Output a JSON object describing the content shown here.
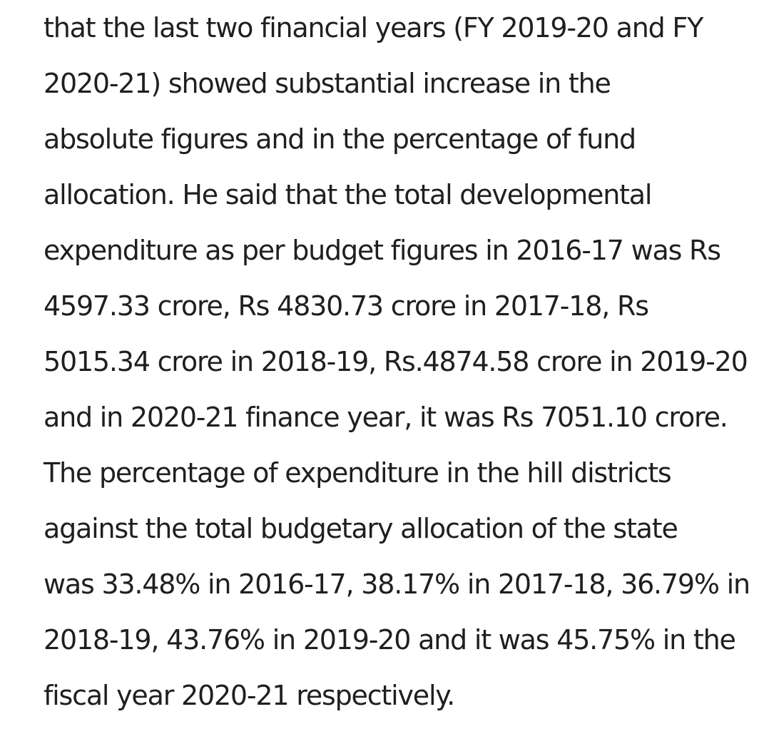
{
  "article": {
    "lines": [
      "that the last two financial years (FY 2019-20 and FY",
      "2020-21) showed substantial increase in the",
      "absolute figures and in the percentage of fund",
      "allocation. He said that the total developmental",
      "expenditure as per budget figures in 2016-17 was Rs",
      "4597.33 crore, Rs 4830.73 crore in 2017-18, Rs",
      "5015.34 crore in 2018-19, Rs.4874.58 crore in 2019-20",
      "and in 2020-21 finance year, it was Rs 7051.10 crore.",
      "The percentage of expenditure in the hill districts",
      "against the total budgetary allocation of the state",
      "was 33.48% in 2016-17, 38.17% in 2017-18, 36.79% in",
      "2018-19, 43.76% in 2019-20 and it was 45.75% in the",
      "fiscal year 2020-21 respectively."
    ]
  }
}
